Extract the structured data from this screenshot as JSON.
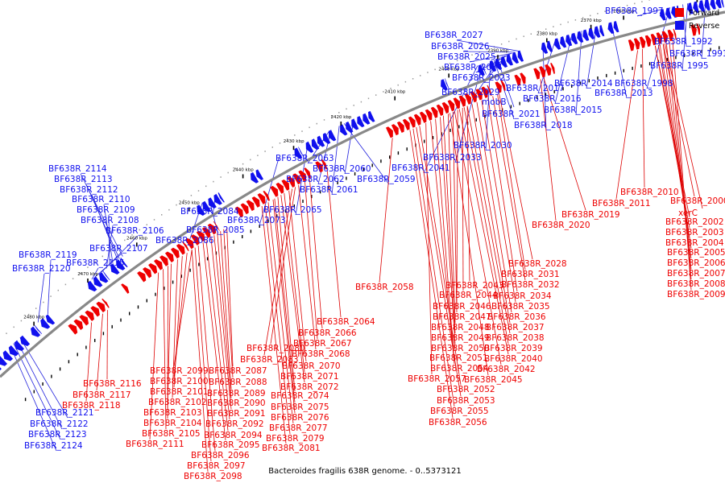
{
  "caption": "Bacteroides fragilis 638R genome. - 0..5373121",
  "legend": [
    {
      "label": "Forward",
      "color": "#ee0000"
    },
    {
      "label": "Reverse",
      "color": "#1010ee"
    }
  ],
  "colors": {
    "forward": "#ee0000",
    "reverse": "#1010ee",
    "backbone": "#888888",
    "leader_forward": "#dd0000",
    "leader_reverse": "#2222dd"
  },
  "ticks": [
    "2350 kbp",
    "2360 kbp",
    "2370 kbp",
    "2380 kbp",
    "2390 kbp",
    "2400 kbp",
    "2410 kbp",
    "2420 kbp",
    "2430 kbp",
    "2440 kbp",
    "2450 kbp",
    "2460 kbp",
    "2470 kbp",
    "2480 kbp"
  ],
  "reverse_labels": [
    "BF638R_1997",
    "BF638R_1992",
    "BF638R_1991",
    "BF638R_1995",
    "BF638R_1998",
    "BF638R_2013",
    "BF638R_2014",
    "BF638R_2015",
    "BF638R_2016",
    "BF638R_2017",
    "BF638R_2018",
    "BF638R_2027",
    "BF638R_2026",
    "BF638R_2025",
    "BF638R_2024",
    "BF638R_2023",
    "BF638R_2029",
    "mobB",
    "BF638R_2021",
    "BF638R_2030",
    "BF638R_2033",
    "BF638R_2041",
    "BF638R_2063",
    "BF638R_2060",
    "BF638R_2062",
    "BF638R_2059",
    "BF638R_2061",
    "BF638R_2065",
    "BF638R_2073",
    "BF638R_2084",
    "BF638R_2085",
    "BF638R_2086",
    "BF638R_2114",
    "BF638R_2113",
    "BF638R_2112",
    "BF638R_2110",
    "BF638R_2109",
    "BF638R_2108",
    "BF638R_2106",
    "BF638R_2107",
    "BF638R_2119",
    "BF638R_2115",
    "BF638R_2120",
    "BF638R_2121",
    "BF638R_2122",
    "BF638R_2123",
    "BF638R_2124"
  ],
  "forward_labels": [
    "BF638R_2010",
    "BF638R_2000",
    "BF638R_2011",
    "xerC",
    "BF638R_2002",
    "BF638R_2003",
    "BF638R_2004",
    "BF638R_2005",
    "BF638R_2006",
    "BF638R_2007",
    "BF638R_2008",
    "BF638R_2009",
    "BF638R_2019",
    "BF638R_2020",
    "BF638R_2028",
    "BF638R_2031",
    "BF638R_2032",
    "BF638R_2034",
    "BF638R_2035",
    "BF638R_2036",
    "BF638R_2037",
    "BF638R_2038",
    "BF638R_2039",
    "BF638R_2040",
    "BF638R_2042",
    "BF638R_2045",
    "BF638R_2043",
    "BF638R_2044",
    "BF638R_2046",
    "BF638R_2047",
    "BF638R_2048",
    "BF638R_2049",
    "BF638R_2050",
    "BF638R_2051",
    "BF638R_2054",
    "BF638R_2057",
    "BF638R_2052",
    "BF638R_2053",
    "BF638R_2055",
    "BF638R_2056",
    "BF638R_2058",
    "BF638R_2064",
    "BF638R_2066",
    "BF638R_2067",
    "BF638R_2068",
    "BF638R_2080",
    "BF638R_2083",
    "BF638R_2070",
    "BF638R_2071",
    "BF638R_2072",
    "BF638R_2074",
    "BF638R_2075",
    "BF638R_2076",
    "BF638R_2077",
    "BF638R_2079",
    "BF638R_2081",
    "BF638R_2087",
    "BF638R_2088",
    "BF638R_2089",
    "BF638R_2090",
    "BF638R_2091",
    "BF638R_2092",
    "BF638R_2094",
    "BF638R_2095",
    "BF638R_2096",
    "BF638R_2097",
    "BF638R_2098",
    "BF638R_2099",
    "BF638R_2100",
    "BF638R_2101",
    "BF638R_2102",
    "BF638R_2103",
    "BF638R_2104",
    "BF638R_2105",
    "BF638R_2111",
    "BF638R_2116",
    "BF638R_2117",
    "BF638R_2118"
  ]
}
